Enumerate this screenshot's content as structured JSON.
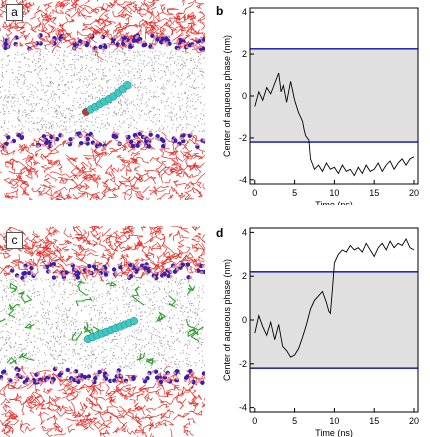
{
  "panels": [
    {
      "id": "a",
      "label": "a",
      "kind": "snapshot"
    },
    {
      "id": "b",
      "label": "b",
      "kind": "plot"
    },
    {
      "id": "c",
      "label": "c",
      "kind": "snapshot"
    },
    {
      "id": "d",
      "label": "d",
      "kind": "plot"
    }
  ],
  "colors": {
    "lipid_tails": "#e8302a",
    "headgroups": "#3a1fa8",
    "water": "#9a9a9a",
    "solute": "#3ec9c4",
    "solute_end": "#c0392b",
    "green_molecules": "#2ea02e",
    "aqueous_band": "#e0e0e0",
    "boundary_line": "#2b2bb8",
    "trace": "#000000"
  },
  "chart_data": [
    {
      "id": "b",
      "label": "b",
      "type": "line",
      "xlabel": "Time (ns)",
      "ylabel": "Center of aqueous phase",
      "ylabel_unit": "(nm)",
      "xlim": [
        -0.6,
        20.5
      ],
      "ylim": [
        -4.2,
        4.2
      ],
      "xticks": [
        0,
        5,
        10,
        15,
        20
      ],
      "yticks": [
        -4,
        -2,
        0,
        2,
        4
      ],
      "band": [
        -2.2,
        2.2
      ],
      "boundaries": [
        2.25,
        -2.2
      ],
      "x": [
        0,
        0.5,
        1,
        1.5,
        2,
        2.5,
        3,
        3.3,
        3.6,
        4,
        4.5,
        5,
        5.5,
        6,
        6.2,
        6.4,
        6.8,
        7,
        7.5,
        8,
        8.5,
        9,
        9.5,
        10,
        10.5,
        11,
        11.5,
        12,
        12.5,
        13,
        13.5,
        14,
        14.5,
        15,
        15.5,
        16,
        16.5,
        17,
        17.5,
        18,
        18.5,
        19,
        19.5,
        20
      ],
      "y": [
        -0.5,
        0.2,
        -0.2,
        0.4,
        0.1,
        0.6,
        1.1,
        0.2,
        0.5,
        -0.3,
        0.7,
        -0.2,
        -0.8,
        -1.2,
        -1.6,
        -1.9,
        -2.1,
        -3.0,
        -3.5,
        -3.3,
        -3.6,
        -3.2,
        -3.5,
        -3.4,
        -3.7,
        -3.3,
        -3.6,
        -3.5,
        -3.8,
        -3.4,
        -3.7,
        -3.3,
        -3.6,
        -3.5,
        -3.2,
        -3.6,
        -3.3,
        -3.1,
        -3.5,
        -3.2,
        -3.0,
        -3.3,
        -3.0,
        -2.9
      ]
    },
    {
      "id": "d",
      "label": "d",
      "type": "line",
      "xlabel": "Time (ns)",
      "ylabel": "Center of aqueous phase",
      "ylabel_unit": "(nm)",
      "xlim": [
        -0.6,
        20.5
      ],
      "ylim": [
        -4.2,
        4.2
      ],
      "xticks": [
        0,
        5,
        10,
        15,
        20
      ],
      "yticks": [
        -4,
        -2,
        0,
        2,
        4
      ],
      "band": [
        -2.2,
        2.2
      ],
      "boundaries": [
        2.2,
        -2.2
      ],
      "x": [
        0,
        0.5,
        1,
        1.5,
        2,
        2.5,
        3,
        3.5,
        4,
        4.5,
        5,
        5.5,
        6,
        6.5,
        7,
        7.5,
        8,
        8.5,
        9,
        9.3,
        9.5,
        9.8,
        10,
        10.5,
        11,
        11.5,
        12,
        12.5,
        13,
        13.5,
        14,
        14.5,
        15,
        15.5,
        16,
        16.5,
        17,
        17.5,
        18,
        18.5,
        19,
        19.5,
        20
      ],
      "y": [
        -0.6,
        0.2,
        -0.3,
        -0.7,
        -0.1,
        -0.9,
        -0.2,
        -1.2,
        -1.4,
        -1.7,
        -1.6,
        -1.3,
        -0.8,
        -0.2,
        0.5,
        0.9,
        1.1,
        1.3,
        0.8,
        0.4,
        0.3,
        1.6,
        2.6,
        3.0,
        3.2,
        3.1,
        3.4,
        3.2,
        3.3,
        3.1,
        3.5,
        3.2,
        2.9,
        3.3,
        3.5,
        3.2,
        3.6,
        3.3,
        3.5,
        3.4,
        3.7,
        3.3,
        3.2
      ]
    }
  ]
}
